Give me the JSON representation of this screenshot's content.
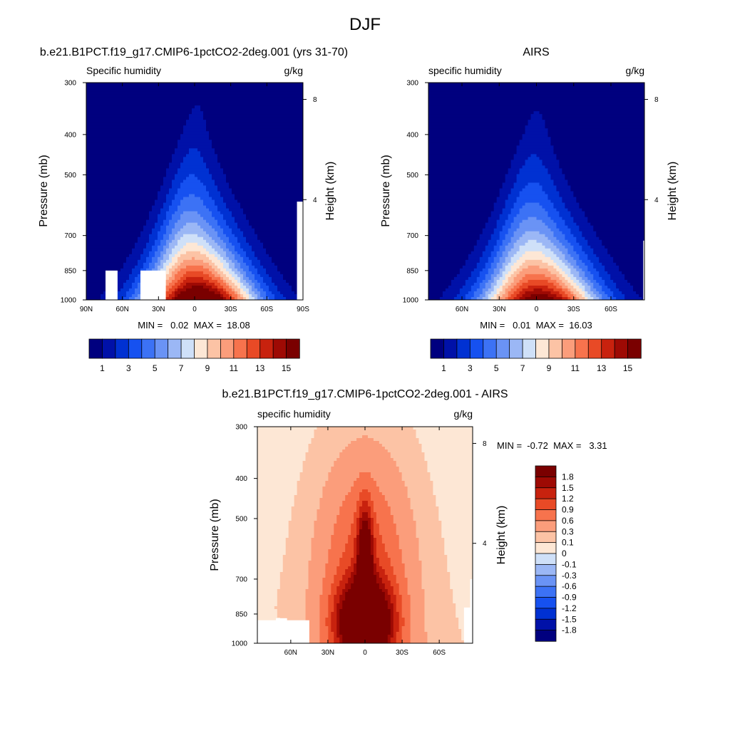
{
  "figure": {
    "title": "DJF"
  },
  "chart_data": [
    {
      "type": "heatmap",
      "id": "model",
      "title": "b.e21.B1PCT.f19_g17.CMIP6-1pctCO2-2deg.001 (yrs 31-70)",
      "left_label": "Specific humidity",
      "right_label": "g/kg",
      "ylabel": "Pressure (mb)",
      "y2label": "Height (km)",
      "x_ticks": [
        "90N",
        "60N",
        "30N",
        "0",
        "30S",
        "60S",
        "90S"
      ],
      "y_ticks": [
        "300",
        "400",
        "500",
        "700",
        "850",
        "1000"
      ],
      "y2_ticks": [
        "8",
        "4"
      ],
      "stats": "MIN =   0.02  MAX =  18.08",
      "min": 0.02,
      "max": 18.08,
      "peak": 18.08,
      "colorbar": {
        "orientation": "horizontal",
        "levels": [
          1,
          2,
          3,
          4,
          5,
          6,
          7,
          8,
          9,
          10,
          11,
          12,
          13,
          14,
          15
        ],
        "labels": [
          "1",
          "3",
          "5",
          "7",
          "9",
          "11",
          "13",
          "15"
        ],
        "colors": [
          "#00007f",
          "#0011a8",
          "#0031d2",
          "#1651f0",
          "#3c72f5",
          "#6a93f5",
          "#9bb7f5",
          "#cfe0f8",
          "#fde7d5",
          "#fcc3a5",
          "#fb9d7b",
          "#f7734d",
          "#e84a26",
          "#c8220e",
          "#9e0a04",
          "#7a0000"
        ]
      }
    },
    {
      "type": "heatmap",
      "id": "obs",
      "title": "AIRS",
      "left_label": "specific humidity",
      "right_label": "g/kg",
      "ylabel": "Pressure (mb)",
      "y2label": "Height (km)",
      "x_ticks": [
        "60N",
        "30N",
        "0",
        "30S",
        "60S"
      ],
      "y_ticks": [
        "300",
        "400",
        "500",
        "700",
        "850",
        "1000"
      ],
      "y2_ticks": [
        "8",
        "4"
      ],
      "stats": "MIN =   0.01  MAX =  16.03",
      "min": 0.01,
      "max": 16.03,
      "peak": 16.03,
      "colorbar": {
        "orientation": "horizontal",
        "levels": [
          1,
          2,
          3,
          4,
          5,
          6,
          7,
          8,
          9,
          10,
          11,
          12,
          13,
          14,
          15
        ],
        "labels": [
          "1",
          "3",
          "5",
          "7",
          "9",
          "11",
          "13",
          "15"
        ],
        "colors": [
          "#00007f",
          "#0011a8",
          "#0031d2",
          "#1651f0",
          "#3c72f5",
          "#6a93f5",
          "#9bb7f5",
          "#cfe0f8",
          "#fde7d5",
          "#fcc3a5",
          "#fb9d7b",
          "#f7734d",
          "#e84a26",
          "#c8220e",
          "#9e0a04",
          "#7a0000"
        ]
      }
    },
    {
      "type": "heatmap",
      "id": "diff",
      "title": "b.e21.B1PCT.f19_g17.CMIP6-1pctCO2-2deg.001 - AIRS",
      "left_label": "specific humidity",
      "right_label": "g/kg",
      "ylabel": "Pressure (mb)",
      "y2label": "Height (km)",
      "x_ticks": [
        "60N",
        "30N",
        "0",
        "30S",
        "60S"
      ],
      "y_ticks": [
        "300",
        "400",
        "500",
        "700",
        "850",
        "1000"
      ],
      "y2_ticks": [
        "8",
        "4"
      ],
      "stats": "MIN =  -0.72  MAX =   3.31",
      "min": -0.72,
      "max": 3.31,
      "colorbar": {
        "orientation": "vertical",
        "levels": [
          -1.8,
          -1.5,
          -1.2,
          -0.9,
          -0.6,
          -0.3,
          -0.1,
          0,
          0.1,
          0.3,
          0.6,
          0.9,
          1.2,
          1.5,
          1.8
        ],
        "labels": [
          "1.8",
          "1.5",
          "1.2",
          "0.9",
          "0.6",
          "0.3",
          "0.1",
          "0",
          "-0.1",
          "-0.3",
          "-0.6",
          "-0.9",
          "-1.2",
          "-1.5",
          "-1.8"
        ],
        "colors": [
          "#00007f",
          "#0011a8",
          "#0031d2",
          "#1651f0",
          "#3c72f5",
          "#6a93f5",
          "#9bb7f5",
          "#cfe0f8",
          "#fde7d5",
          "#fcc3a5",
          "#fb9d7b",
          "#f7734d",
          "#e84a26",
          "#c8220e",
          "#9e0a04",
          "#7a0000"
        ]
      }
    }
  ]
}
